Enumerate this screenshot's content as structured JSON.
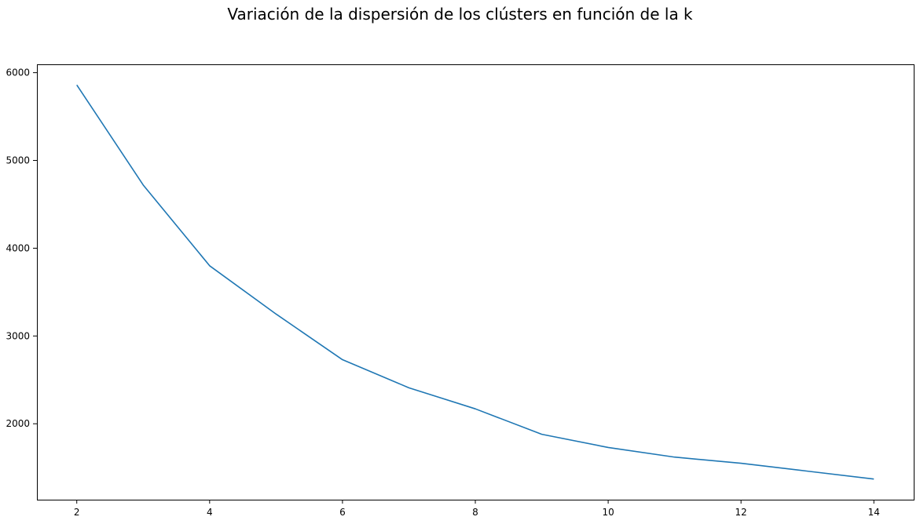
{
  "chart_data": {
    "type": "line",
    "title": "Variación de la dispersión de los clústers en función de la k",
    "xlabel": "",
    "ylabel": "",
    "x": [
      2,
      3,
      4,
      5,
      6,
      7,
      8,
      9,
      10,
      11,
      12,
      13,
      14
    ],
    "series": [
      {
        "values": [
          5860,
          4720,
          3800,
          3250,
          2730,
          2410,
          2170,
          1880,
          1730,
          1620,
          1550,
          1460,
          1370
        ],
        "color": "#1f77b4"
      }
    ],
    "xlim": [
      1.4,
      14.6
    ],
    "ylim": [
      1135,
      6095
    ],
    "xticks": [
      2,
      4,
      6,
      8,
      10,
      12,
      14
    ],
    "yticks": [
      2000,
      3000,
      4000,
      5000,
      6000
    ],
    "grid": false,
    "legend": "none"
  }
}
